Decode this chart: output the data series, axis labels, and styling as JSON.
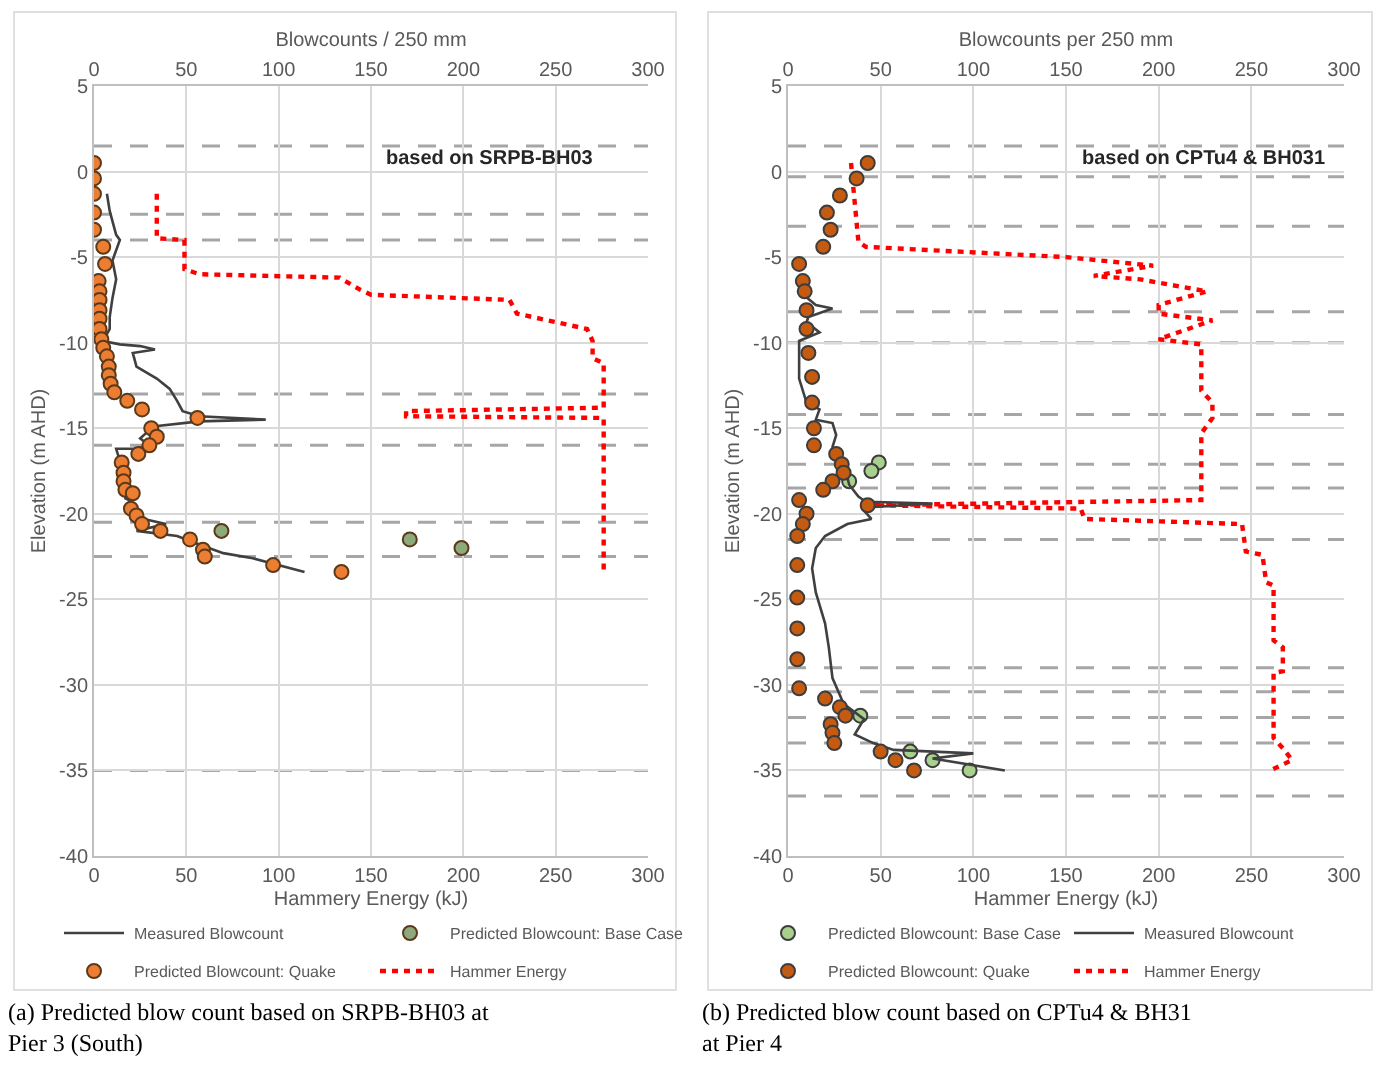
{
  "chart_data": [
    {
      "type": "line",
      "xlabel": "Hammery Energy (kJ)",
      "x2label": "Blowcounts / 250 mm",
      "ylabel": "Elevation (m AHD)",
      "xlim": [
        0,
        300
      ],
      "xticks": [
        0,
        50,
        100,
        150,
        200,
        250,
        300
      ],
      "x2lim": [
        0,
        300
      ],
      "x2ticks": [
        0,
        50,
        100,
        150,
        200,
        250,
        300
      ],
      "ylim": [
        -40,
        5
      ],
      "yticks": [
        -40,
        -35,
        -30,
        -25,
        -20,
        -15,
        -10,
        -5,
        0,
        5
      ],
      "grid": true,
      "legend": "bottom",
      "annotations": [
        "based on SRPB-BH03",
        "(a) Predicted blow count based on SRPB-BH03 at Pier 3 (South)"
      ],
      "ref_lines": [
        {
          "axis": "y",
          "value": 1.5,
          "color": "#a6a6a6",
          "line_style": "dashed"
        },
        {
          "axis": "y",
          "value": -2.5,
          "color": "#a6a6a6",
          "line_style": "dashed"
        },
        {
          "axis": "y",
          "value": -4,
          "color": "#a6a6a6",
          "line_style": "dashed"
        },
        {
          "axis": "y",
          "value": -13,
          "color": "#a6a6a6",
          "line_style": "dashed"
        },
        {
          "axis": "y",
          "value": -16,
          "color": "#a6a6a6",
          "line_style": "dashed"
        },
        {
          "axis": "y",
          "value": -20.5,
          "color": "#a6a6a6",
          "line_style": "dashed"
        },
        {
          "axis": "y",
          "value": -22.5,
          "color": "#a6a6a6",
          "line_style": "dashed"
        },
        {
          "axis": "y",
          "value": -35,
          "color": "#a6a6a6",
          "line_style": "dashed"
        }
      ],
      "series": [
        {
          "name": "Measured Blowcount",
          "type": "line",
          "axis": "x2",
          "color": "#404040",
          "line_style": "solid",
          "x": [
            7,
            8.5,
            12,
            14,
            10,
            12,
            10,
            8.5,
            8.5,
            5,
            14,
            25,
            33,
            21,
            23,
            34,
            41,
            45,
            48,
            57,
            93,
            57,
            32,
            28,
            25,
            30,
            23,
            12,
            14,
            16,
            17,
            19,
            21,
            27,
            39,
            23,
            45,
            57,
            70,
            86,
            114
          ],
          "values": [
            -1.3,
            -2.3,
            -3.7,
            -4,
            -5.2,
            -6.3,
            -7.4,
            -8.5,
            -9.2,
            -9.9,
            -10.1,
            -10.2,
            -10.4,
            -10.6,
            -11.4,
            -12.1,
            -12.7,
            -13.4,
            -14,
            -14.3,
            -14.5,
            -14.6,
            -14.9,
            -15.3,
            -15.6,
            -16,
            -16.2,
            -16.2,
            -16.9,
            -18,
            -19.1,
            -19.2,
            -19.9,
            -20.3,
            -20.6,
            -21,
            -21.3,
            -21.8,
            -22.3,
            -22.6,
            -23.4
          ]
        },
        {
          "name": "Predicted Blowcount: Base Case",
          "type": "scatter",
          "axis": "x2",
          "marker": "circle",
          "color": "#8faa7a",
          "x": [
            69,
            171,
            199
          ],
          "values": [
            -21,
            -21.5,
            -22
          ]
        },
        {
          "name": "Predicted Blowcount: Quake",
          "type": "scatter",
          "axis": "x2",
          "marker": "circle",
          "color": "#ed7d31",
          "x": [
            0,
            0,
            0,
            0,
            0,
            5,
            6,
            2.5,
            3,
            3,
            3,
            3,
            3,
            4,
            5,
            7,
            8,
            8,
            9,
            11,
            18,
            26,
            56,
            31,
            34,
            30,
            24,
            15,
            16,
            16,
            17,
            20,
            21,
            23,
            26,
            36,
            52,
            59,
            60,
            97,
            134
          ],
          "values": [
            0.5,
            -0.4,
            -1.3,
            -2.4,
            -3.4,
            -4.4,
            -5.4,
            -6.4,
            -7,
            -7.5,
            -8.1,
            -8.6,
            -9.2,
            -9.8,
            -10.3,
            -10.8,
            -11.4,
            -11.9,
            -12.4,
            -12.9,
            -13.4,
            -13.9,
            -14.4,
            -15,
            -15.5,
            -16,
            -16.5,
            -17,
            -17.6,
            -18.1,
            -18.6,
            -19.7,
            -18.8,
            -20.1,
            -20.6,
            -21,
            -21.5,
            -22.1,
            -22.5,
            -23,
            -23.4
          ]
        },
        {
          "name": "Hammer Energy",
          "type": "line",
          "color": "#ff0000",
          "line_style": "dotted",
          "x": [
            34,
            34,
            49,
            49,
            57,
            133,
            144,
            150,
            225,
            229,
            267,
            270,
            270,
            276,
            276,
            169,
            169,
            276,
            276
          ],
          "values": [
            -1.3,
            -3.9,
            -4,
            -5.7,
            -6,
            -6.2,
            -6.9,
            -7.2,
            -7.5,
            -8.3,
            -9.2,
            -9.9,
            -10.9,
            -11.2,
            -13.8,
            -14,
            -14.3,
            -14.4,
            -23.4
          ]
        }
      ]
    },
    {
      "type": "line",
      "xlabel": "Hammer Energy (kJ)",
      "x2label": "Blowcounts per 250 mm",
      "ylabel": "Elevation (m AHD)",
      "xlim": [
        0,
        300
      ],
      "xticks": [
        0,
        50,
        100,
        150,
        200,
        250,
        300
      ],
      "x2lim": [
        0,
        300
      ],
      "x2ticks": [
        0,
        50,
        100,
        150,
        200,
        250,
        300
      ],
      "ylim": [
        -40,
        5
      ],
      "yticks": [
        -40,
        -35,
        -30,
        -25,
        -20,
        -15,
        -10,
        -5,
        0,
        5
      ],
      "grid": true,
      "legend": "bottom",
      "annotations": [
        "based on CPTu4 & BH031",
        "(b) Predicted blow count based on CPTu4 & BH31 at Pier 4"
      ],
      "ref_lines": [
        {
          "axis": "y",
          "value": 1.5,
          "color": "#a6a6a6",
          "line_style": "dashed"
        },
        {
          "axis": "y",
          "value": -0.3,
          "color": "#a6a6a6",
          "line_style": "dashed"
        },
        {
          "axis": "y",
          "value": -3.2,
          "color": "#a6a6a6",
          "line_style": "dashed"
        },
        {
          "axis": "y",
          "value": -8.2,
          "color": "#a6a6a6",
          "line_style": "dashed"
        },
        {
          "axis": "y",
          "value": -10,
          "color": "#a6a6a6",
          "line_style": "dashed"
        },
        {
          "axis": "y",
          "value": -14.2,
          "color": "#a6a6a6",
          "line_style": "dashed"
        },
        {
          "axis": "y",
          "value": -17.1,
          "color": "#a6a6a6",
          "line_style": "dashed"
        },
        {
          "axis": "y",
          "value": -18.5,
          "color": "#a6a6a6",
          "line_style": "dashed"
        },
        {
          "axis": "y",
          "value": -21.5,
          "color": "#a6a6a6",
          "line_style": "dashed"
        },
        {
          "axis": "y",
          "value": -29,
          "color": "#a6a6a6",
          "line_style": "dashed"
        },
        {
          "axis": "y",
          "value": -30.4,
          "color": "#a6a6a6",
          "line_style": "dashed"
        },
        {
          "axis": "y",
          "value": -31.9,
          "color": "#a6a6a6",
          "line_style": "dashed"
        },
        {
          "axis": "y",
          "value": -33.4,
          "color": "#a6a6a6",
          "line_style": "dashed"
        },
        {
          "axis": "y",
          "value": -36.5,
          "color": "#a6a6a6",
          "line_style": "dashed"
        }
      ],
      "series": [
        {
          "name": "Predicted Blowcount: Base Case",
          "type": "scatter",
          "axis": "x2",
          "marker": "circle",
          "color": "#a9d18e",
          "x": [
            49,
            45,
            33,
            39,
            66,
            78,
            98
          ],
          "values": [
            -17,
            -17.5,
            -18.1,
            -31.8,
            -33.9,
            -34.4,
            -35
          ]
        },
        {
          "name": "Measured Blowcount",
          "type": "line",
          "axis": "x2",
          "color": "#404040",
          "line_style": "solid",
          "x": [
            6,
            15,
            24,
            11,
            10,
            17,
            6,
            6,
            10,
            17,
            15,
            24,
            26,
            24,
            26,
            31,
            33,
            38,
            42,
            78,
            46,
            40,
            45,
            32,
            20,
            15,
            13,
            15,
            20,
            22,
            24,
            30,
            41,
            36,
            46,
            57,
            100,
            78,
            117
          ],
          "values": [
            -7,
            -7.8,
            -8,
            -8.5,
            -8.8,
            -9.4,
            -9.9,
            -12.1,
            -13.5,
            -13.9,
            -14.5,
            -14.7,
            -15.4,
            -16.1,
            -16.6,
            -17.4,
            -18.3,
            -19,
            -19.3,
            -19.4,
            -19.6,
            -19.7,
            -20.3,
            -20.6,
            -21.3,
            -22,
            -23.2,
            -24.6,
            -26.4,
            -27.8,
            -29.6,
            -31.1,
            -32,
            -32.9,
            -33.4,
            -33.8,
            -34,
            -34.3,
            -35
          ]
        },
        {
          "name": "Predicted Blowcount: Quake",
          "type": "scatter",
          "axis": "x2",
          "marker": "circle",
          "color": "#c55a11",
          "x": [
            43,
            37,
            28,
            21,
            23,
            19,
            6,
            8,
            9,
            10,
            10,
            11,
            13,
            13,
            14,
            14,
            26,
            29,
            30,
            24,
            19,
            6,
            43,
            10,
            8,
            5,
            5,
            5,
            5,
            5,
            6,
            20,
            28,
            31,
            23,
            24,
            25,
            50,
            58,
            68
          ],
          "values": [
            0.5,
            -0.4,
            -1.4,
            -2.4,
            -3.4,
            -4.4,
            -5.4,
            -6.4,
            -7,
            -8.1,
            -9.2,
            -10.6,
            -12,
            -13.5,
            -15,
            -16,
            -16.5,
            -17.1,
            -17.6,
            -18.1,
            -18.6,
            -19.2,
            -19.5,
            -20,
            -20.6,
            -21.3,
            -23,
            -24.9,
            -26.7,
            -28.5,
            -30.2,
            -30.8,
            -31.3,
            -31.8,
            -32.3,
            -32.8,
            -33.4,
            -33.9,
            -34.4,
            -35
          ]
        },
        {
          "name": "Hammer Energy",
          "type": "line",
          "color": "#ff0000",
          "line_style": "dotted",
          "x": [
            34,
            38,
            42,
            150,
            197,
            165,
            190,
            226,
            200,
            200,
            229,
            200,
            223,
            223,
            229,
            229,
            223,
            223,
            46,
            158,
            160,
            245,
            247,
            256,
            258,
            262,
            262,
            267,
            267,
            262,
            262,
            267,
            272,
            260
          ],
          "values": [
            0.5,
            -4.1,
            -4.4,
            -5,
            -5.5,
            -6.1,
            -6.3,
            -7,
            -7.8,
            -8.3,
            -8.7,
            -9.8,
            -10.1,
            -12.8,
            -13.5,
            -14.4,
            -15.3,
            -19.2,
            -19.5,
            -19.7,
            -20.3,
            -20.6,
            -22.2,
            -22.4,
            -24,
            -24.2,
            -27.4,
            -27.8,
            -29.2,
            -29.3,
            -33.1,
            -33.7,
            -34.4,
            -35
          ]
        }
      ]
    }
  ]
}
